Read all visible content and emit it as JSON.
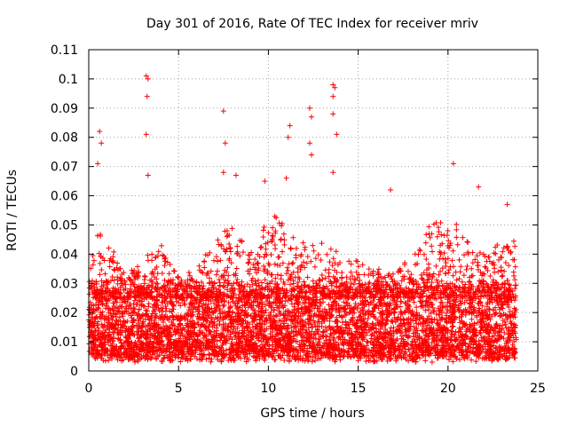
{
  "chart_data": {
    "type": "scatter",
    "title": "Day 301 of 2016, Rate Of TEC Index for receiver mriv",
    "xlabel": "GPS time / hours",
    "ylabel": "ROTI / TECUs",
    "xlim": [
      0,
      25
    ],
    "ylim": [
      0,
      0.11
    ],
    "xticks": [
      0,
      5,
      10,
      15,
      20,
      25
    ],
    "xtick_labels": [
      "0",
      "5",
      "10",
      "15",
      "20",
      "25"
    ],
    "yticks": [
      0,
      0.01,
      0.02,
      0.03,
      0.04,
      0.05,
      0.06,
      0.07,
      0.08,
      0.09,
      0.1,
      0.11
    ],
    "ytick_labels": [
      "0",
      "0.01",
      "0.02",
      "0.03",
      "0.04",
      "0.05",
      "0.06",
      "0.07",
      "0.08",
      "0.09",
      "0.1",
      "0.11"
    ],
    "grid": true,
    "marker": "+",
    "series_color": "#ff0000",
    "x_range_data": [
      0,
      23.8
    ],
    "dense_band": [
      0.005,
      0.03
    ],
    "point_count_approx": 6000,
    "envelope": [
      {
        "x": 0.0,
        "upper": 0.035
      },
      {
        "x": 0.5,
        "upper": 0.05
      },
      {
        "x": 1.0,
        "upper": 0.045
      },
      {
        "x": 2.0,
        "upper": 0.035
      },
      {
        "x": 3.0,
        "upper": 0.038
      },
      {
        "x": 4.0,
        "upper": 0.045
      },
      {
        "x": 5.0,
        "upper": 0.032
      },
      {
        "x": 6.0,
        "upper": 0.035
      },
      {
        "x": 7.0,
        "upper": 0.045
      },
      {
        "x": 8.0,
        "upper": 0.05
      },
      {
        "x": 9.0,
        "upper": 0.04
      },
      {
        "x": 10.0,
        "upper": 0.055
      },
      {
        "x": 11.0,
        "upper": 0.05
      },
      {
        "x": 12.0,
        "upper": 0.045
      },
      {
        "x": 13.0,
        "upper": 0.045
      },
      {
        "x": 14.0,
        "upper": 0.04
      },
      {
        "x": 15.0,
        "upper": 0.038
      },
      {
        "x": 16.0,
        "upper": 0.035
      },
      {
        "x": 17.0,
        "upper": 0.035
      },
      {
        "x": 18.0,
        "upper": 0.04
      },
      {
        "x": 19.0,
        "upper": 0.05
      },
      {
        "x": 20.0,
        "upper": 0.055
      },
      {
        "x": 21.0,
        "upper": 0.045
      },
      {
        "x": 22.0,
        "upper": 0.04
      },
      {
        "x": 23.0,
        "upper": 0.045
      },
      {
        "x": 23.8,
        "upper": 0.045
      }
    ],
    "spikes": [
      {
        "x": 0.6,
        "y": 0.082
      },
      {
        "x": 0.7,
        "y": 0.078
      },
      {
        "x": 0.5,
        "y": 0.071
      },
      {
        "x": 3.2,
        "y": 0.101
      },
      {
        "x": 3.3,
        "y": 0.1
      },
      {
        "x": 3.25,
        "y": 0.094
      },
      {
        "x": 3.2,
        "y": 0.081
      },
      {
        "x": 3.3,
        "y": 0.067
      },
      {
        "x": 7.5,
        "y": 0.089
      },
      {
        "x": 7.6,
        "y": 0.078
      },
      {
        "x": 7.5,
        "y": 0.068
      },
      {
        "x": 8.2,
        "y": 0.067
      },
      {
        "x": 9.8,
        "y": 0.065
      },
      {
        "x": 11.2,
        "y": 0.084
      },
      {
        "x": 11.1,
        "y": 0.08
      },
      {
        "x": 11.0,
        "y": 0.066
      },
      {
        "x": 12.3,
        "y": 0.09
      },
      {
        "x": 12.4,
        "y": 0.087
      },
      {
        "x": 12.3,
        "y": 0.078
      },
      {
        "x": 12.4,
        "y": 0.074
      },
      {
        "x": 13.6,
        "y": 0.098
      },
      {
        "x": 13.7,
        "y": 0.097
      },
      {
        "x": 13.6,
        "y": 0.094
      },
      {
        "x": 13.6,
        "y": 0.088
      },
      {
        "x": 13.8,
        "y": 0.081
      },
      {
        "x": 13.6,
        "y": 0.068
      },
      {
        "x": 16.8,
        "y": 0.062
      },
      {
        "x": 20.3,
        "y": 0.071
      },
      {
        "x": 21.7,
        "y": 0.063
      },
      {
        "x": 23.3,
        "y": 0.057
      }
    ]
  }
}
